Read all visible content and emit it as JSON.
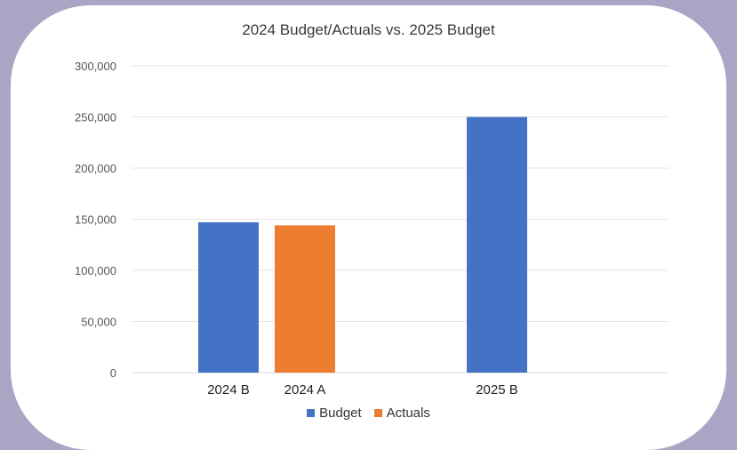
{
  "chart_data": {
    "type": "bar",
    "title": "2024 Budget/Actuals vs. 2025 Budget",
    "categories": [
      "2024 B",
      "2024 A",
      "2025 B"
    ],
    "series": [
      {
        "name": "Budget",
        "color": "#4472c4",
        "values": [
          147000,
          null,
          250000
        ]
      },
      {
        "name": "Actuals",
        "color": "#ed7d31",
        "values": [
          null,
          144000,
          null
        ]
      }
    ],
    "ylim": [
      0,
      300000
    ],
    "yticks": [
      "0",
      "50,000",
      "100,000",
      "150,000",
      "200,000",
      "250,000",
      "300,000"
    ],
    "grid": true,
    "legend_position": "bottom"
  },
  "colors": {
    "background": "#a9a6c5",
    "card": "#ffffff",
    "budget": "#4472c4",
    "actuals": "#ed7d31"
  }
}
